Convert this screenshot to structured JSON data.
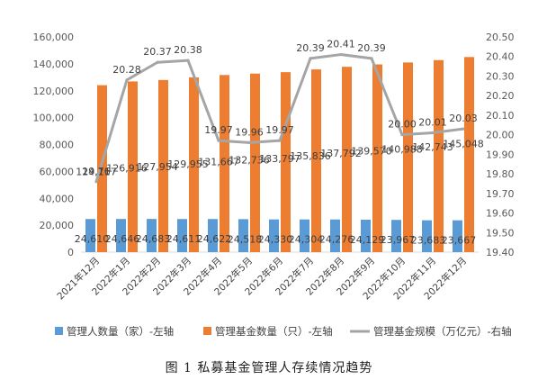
{
  "caption": "图 1  私募基金管理人存续情况趋势",
  "chart_data": {
    "type": "bar",
    "categories": [
      "2021年12月",
      "2022年1月",
      "2022年2月",
      "2022年3月",
      "2022年4月",
      "2022年5月",
      "2022年6月",
      "2022年7月",
      "2022年8月",
      "2022年9月",
      "2022年10月",
      "2022年11月",
      "2022年12月"
    ],
    "y_left": {
      "min": 0,
      "max": 160000,
      "step": 20000,
      "ticks": [
        "0",
        "20,000",
        "40,000",
        "60,000",
        "80,000",
        "100,000",
        "120,000",
        "140,000",
        "160,000"
      ]
    },
    "y_right": {
      "min": 19.4,
      "max": 20.5,
      "step": 0.1,
      "ticks": [
        "19.40",
        "19.50",
        "19.60",
        "19.70",
        "19.80",
        "19.90",
        "20.00",
        "20.10",
        "20.20",
        "20.30",
        "20.40",
        "20.50"
      ]
    },
    "series": [
      {
        "name": "管理人数量（家）-左轴",
        "kind": "bar",
        "axis": "left",
        "color": "#5B9BD5",
        "values": [
          24610,
          24646,
          24683,
          24611,
          24622,
          24518,
          24330,
          24304,
          24276,
          24129,
          23967,
          23683,
          23667
        ],
        "labels": [
          "24,610",
          "24,646",
          "24,683",
          "24,611",
          "24,622",
          "24,518",
          "24,330",
          "24,304",
          "24,276",
          "24,129",
          "23,967",
          "23,683",
          "23,667"
        ]
      },
      {
        "name": "管理基金数量（只）-左轴",
        "kind": "bar",
        "axis": "left",
        "color": "#ED7D31",
        "values": [
          124117,
          126916,
          127954,
          129955,
          131667,
          132736,
          133797,
          135836,
          137792,
          139570,
          140988,
          142743,
          145048
        ],
        "labels": [
          "124,117",
          "126,916",
          "127,954",
          "129,955",
          "131,667",
          "132,736",
          "133,797",
          "135,836",
          "137,792",
          "139,570",
          "140,988",
          "142,743",
          "145,048"
        ]
      },
      {
        "name": "管理基金规模（万亿元）-右轴",
        "kind": "line",
        "axis": "right",
        "color": "#A5A5A5",
        "values": [
          19.76,
          20.28,
          20.37,
          20.38,
          19.97,
          19.96,
          19.97,
          20.39,
          20.41,
          20.39,
          20.0,
          20.01,
          20.03
        ],
        "labels": [
          "19.76",
          "20.28",
          "20.37",
          "20.38",
          "19.97",
          "19.96",
          "19.97",
          "20.39",
          "20.41",
          "20.39",
          "20.00",
          "20.01",
          "20.03"
        ]
      }
    ],
    "legend_position": "bottom",
    "grid": false
  }
}
